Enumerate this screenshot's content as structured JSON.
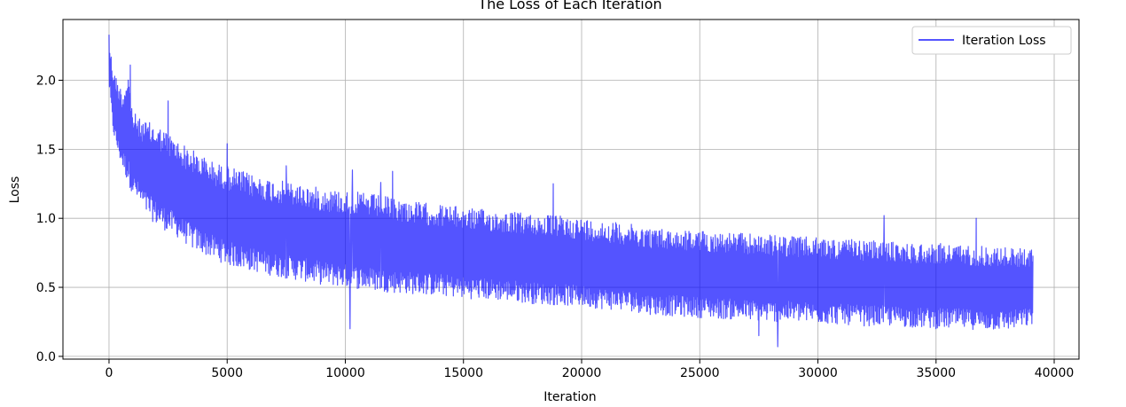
{
  "chart_data": {
    "type": "line",
    "title": "The Loss of Each Iteration",
    "xlabel": "Iteration",
    "ylabel": "Loss",
    "xlim": [
      -1950,
      41050
    ],
    "ylim": [
      -0.02,
      2.44
    ],
    "x_ticks": [
      0,
      5000,
      10000,
      15000,
      20000,
      25000,
      30000,
      35000,
      40000
    ],
    "x_tick_labels": [
      "0",
      "5000",
      "10000",
      "15000",
      "20000",
      "25000",
      "30000",
      "35000",
      "40000"
    ],
    "y_ticks": [
      0.0,
      0.5,
      1.0,
      1.5,
      2.0
    ],
    "y_tick_labels": [
      "0.0",
      "0.5",
      "1.0",
      "1.5",
      "2.0"
    ],
    "grid": true,
    "legend_position": "upper right",
    "series": [
      {
        "name": "Iteration Loss",
        "color": "#0000ff",
        "opacity": 0.67,
        "x": [
          0,
          30,
          80,
          150,
          250,
          400,
          600,
          800,
          1000,
          1300,
          1600,
          2000,
          2500,
          3000,
          3500,
          4000,
          4500,
          5000,
          6000,
          7000,
          8000,
          9000,
          10000,
          11000,
          12000,
          13000,
          14000,
          15000,
          16000,
          17000,
          18000,
          19000,
          20000,
          21000,
          22000,
          23000,
          24000,
          25000,
          26000,
          27000,
          28000,
          29000,
          30000,
          31000,
          32000,
          33000,
          34000,
          35000,
          36000,
          37000,
          38000,
          39100
        ],
        "upper": [
          2.33,
          2.25,
          2.2,
          2.1,
          2.05,
          1.98,
          1.92,
          2.1,
          1.78,
          1.72,
          1.7,
          1.68,
          1.62,
          1.55,
          1.5,
          1.45,
          1.4,
          1.38,
          1.32,
          1.28,
          1.25,
          1.22,
          1.2,
          1.18,
          1.15,
          1.12,
          1.1,
          1.08,
          1.06,
          1.05,
          1.03,
          1.02,
          1.0,
          0.98,
          0.96,
          0.93,
          0.92,
          0.91,
          0.9,
          0.89,
          0.88,
          0.87,
          0.86,
          0.85,
          0.84,
          0.83,
          0.82,
          0.82,
          0.81,
          0.8,
          0.79,
          0.78
        ],
        "lower": [
          1.95,
          1.9,
          1.8,
          1.65,
          1.55,
          1.45,
          1.35,
          1.25,
          1.18,
          1.1,
          1.02,
          0.95,
          0.9,
          0.85,
          0.78,
          0.74,
          0.7,
          0.66,
          0.62,
          0.58,
          0.55,
          0.52,
          0.5,
          0.48,
          0.46,
          0.45,
          0.44,
          0.42,
          0.41,
          0.4,
          0.38,
          0.37,
          0.36,
          0.34,
          0.33,
          0.3,
          0.29,
          0.28,
          0.27,
          0.26,
          0.25,
          0.25,
          0.24,
          0.23,
          0.22,
          0.22,
          0.21,
          0.2,
          0.2,
          0.19,
          0.19,
          0.22
        ],
        "spikes": [
          {
            "x": 0,
            "y": 2.33
          },
          {
            "x": 900,
            "y": 2.11
          },
          {
            "x": 2500,
            "y": 1.85
          },
          {
            "x": 5000,
            "y": 1.54
          },
          {
            "x": 7500,
            "y": 1.38
          },
          {
            "x": 10300,
            "y": 1.35
          },
          {
            "x": 11500,
            "y": 1.26
          },
          {
            "x": 12000,
            "y": 1.34
          },
          {
            "x": 18800,
            "y": 1.25
          },
          {
            "x": 10200,
            "y": 0.2
          },
          {
            "x": 27500,
            "y": 0.15
          },
          {
            "x": 28300,
            "y": 0.07
          },
          {
            "x": 32800,
            "y": 1.02
          },
          {
            "x": 36700,
            "y": 1.0
          }
        ]
      }
    ]
  }
}
